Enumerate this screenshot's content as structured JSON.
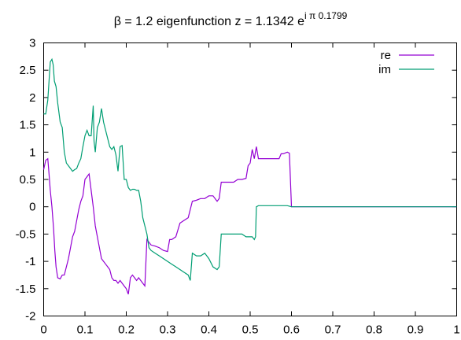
{
  "chart_data": {
    "type": "line",
    "title": {
      "main": "β = 1.2 eigenfunction z = 1.1342 e",
      "superscript": "i π 0.1799"
    },
    "xlabel": "",
    "ylabel": "",
    "xlim": [
      0,
      1
    ],
    "ylim": [
      -2,
      3
    ],
    "x_ticks": [
      "0",
      "0.1",
      "0.2",
      "0.3",
      "0.4",
      "0.5",
      "0.6",
      "0.7",
      "0.8",
      "0.9",
      "1"
    ],
    "y_ticks": [
      "3",
      "2.5",
      "2",
      "1.5",
      "1",
      "0.5",
      "0",
      "-0.5",
      "-1",
      "-1.5",
      "-2"
    ],
    "grid": false,
    "legend_position": "top-right",
    "series": [
      {
        "name": "re",
        "color": "#9400d3",
        "points": [
          [
            0.0,
            0.68
          ],
          [
            0.005,
            0.85
          ],
          [
            0.01,
            0.88
          ],
          [
            0.013,
            0.6
          ],
          [
            0.016,
            0.3
          ],
          [
            0.02,
            0.0
          ],
          [
            0.024,
            -0.4
          ],
          [
            0.027,
            -0.8
          ],
          [
            0.03,
            -1.1
          ],
          [
            0.034,
            -1.3
          ],
          [
            0.04,
            -1.32
          ],
          [
            0.045,
            -1.25
          ],
          [
            0.05,
            -1.25
          ],
          [
            0.055,
            -1.1
          ],
          [
            0.06,
            -0.95
          ],
          [
            0.065,
            -0.75
          ],
          [
            0.07,
            -0.55
          ],
          [
            0.075,
            -0.45
          ],
          [
            0.08,
            -0.25
          ],
          [
            0.085,
            -0.05
          ],
          [
            0.09,
            0.1
          ],
          [
            0.095,
            0.2
          ],
          [
            0.1,
            0.5
          ],
          [
            0.105,
            0.55
          ],
          [
            0.11,
            0.6
          ],
          [
            0.115,
            0.3
          ],
          [
            0.12,
            0.0
          ],
          [
            0.125,
            -0.35
          ],
          [
            0.13,
            -0.55
          ],
          [
            0.135,
            -0.75
          ],
          [
            0.14,
            -0.95
          ],
          [
            0.145,
            -1.0
          ],
          [
            0.15,
            -1.05
          ],
          [
            0.155,
            -1.1
          ],
          [
            0.16,
            -1.15
          ],
          [
            0.165,
            -1.3
          ],
          [
            0.17,
            -1.35
          ],
          [
            0.175,
            -1.35
          ],
          [
            0.18,
            -1.4
          ],
          [
            0.185,
            -1.35
          ],
          [
            0.19,
            -1.4
          ],
          [
            0.195,
            -1.45
          ],
          [
            0.2,
            -1.5
          ],
          [
            0.205,
            -1.6
          ],
          [
            0.21,
            -1.3
          ],
          [
            0.215,
            -1.25
          ],
          [
            0.22,
            -1.3
          ],
          [
            0.225,
            -1.35
          ],
          [
            0.23,
            -1.3
          ],
          [
            0.235,
            -1.35
          ],
          [
            0.24,
            -1.4
          ],
          [
            0.245,
            -1.45
          ],
          [
            0.25,
            -0.6
          ],
          [
            0.255,
            -0.65
          ],
          [
            0.26,
            -0.7
          ],
          [
            0.27,
            -0.72
          ],
          [
            0.28,
            -0.75
          ],
          [
            0.29,
            -0.8
          ],
          [
            0.3,
            -0.82
          ],
          [
            0.305,
            -0.6
          ],
          [
            0.31,
            -0.6
          ],
          [
            0.32,
            -0.55
          ],
          [
            0.33,
            -0.3
          ],
          [
            0.34,
            -0.25
          ],
          [
            0.35,
            -0.2
          ],
          [
            0.36,
            0.1
          ],
          [
            0.37,
            0.12
          ],
          [
            0.38,
            0.15
          ],
          [
            0.39,
            0.15
          ],
          [
            0.4,
            0.2
          ],
          [
            0.41,
            0.2
          ],
          [
            0.42,
            0.1
          ],
          [
            0.425,
            0.15
          ],
          [
            0.43,
            0.45
          ],
          [
            0.44,
            0.45
          ],
          [
            0.45,
            0.45
          ],
          [
            0.46,
            0.45
          ],
          [
            0.47,
            0.5
          ],
          [
            0.48,
            0.5
          ],
          [
            0.49,
            0.52
          ],
          [
            0.495,
            0.75
          ],
          [
            0.5,
            0.8
          ],
          [
            0.505,
            1.05
          ],
          [
            0.51,
            0.88
          ],
          [
            0.515,
            1.1
          ],
          [
            0.52,
            0.88
          ],
          [
            0.53,
            0.88
          ],
          [
            0.55,
            0.88
          ],
          [
            0.57,
            0.88
          ],
          [
            0.575,
            0.97
          ],
          [
            0.58,
            0.97
          ],
          [
            0.59,
            1.0
          ],
          [
            0.595,
            0.98
          ],
          [
            0.6,
            0.0
          ],
          [
            0.7,
            0.0
          ],
          [
            0.8,
            0.0
          ],
          [
            0.9,
            0.0
          ],
          [
            1.0,
            0.0
          ]
        ]
      },
      {
        "name": "im",
        "color": "#009e73",
        "points": [
          [
            0.0,
            1.7
          ],
          [
            0.005,
            1.7
          ],
          [
            0.01,
            1.95
          ],
          [
            0.013,
            2.3
          ],
          [
            0.016,
            2.65
          ],
          [
            0.02,
            2.7
          ],
          [
            0.023,
            2.6
          ],
          [
            0.026,
            2.3
          ],
          [
            0.03,
            2.2
          ],
          [
            0.034,
            1.9
          ],
          [
            0.04,
            1.55
          ],
          [
            0.045,
            1.45
          ],
          [
            0.05,
            1.0
          ],
          [
            0.055,
            0.8
          ],
          [
            0.06,
            0.75
          ],
          [
            0.065,
            0.7
          ],
          [
            0.07,
            0.65
          ],
          [
            0.075,
            0.68
          ],
          [
            0.08,
            0.7
          ],
          [
            0.085,
            0.8
          ],
          [
            0.09,
            0.88
          ],
          [
            0.095,
            1.1
          ],
          [
            0.1,
            1.3
          ],
          [
            0.105,
            1.4
          ],
          [
            0.11,
            1.3
          ],
          [
            0.115,
            1.3
          ],
          [
            0.12,
            1.85
          ],
          [
            0.122,
            1.2
          ],
          [
            0.125,
            1.0
          ],
          [
            0.13,
            1.45
          ],
          [
            0.135,
            1.55
          ],
          [
            0.14,
            1.8
          ],
          [
            0.145,
            1.55
          ],
          [
            0.15,
            1.4
          ],
          [
            0.155,
            1.25
          ],
          [
            0.16,
            1.1
          ],
          [
            0.165,
            1.05
          ],
          [
            0.17,
            1.1
          ],
          [
            0.175,
            0.95
          ],
          [
            0.18,
            0.65
          ],
          [
            0.185,
            1.1
          ],
          [
            0.19,
            1.12
          ],
          [
            0.195,
            0.5
          ],
          [
            0.2,
            0.5
          ],
          [
            0.205,
            0.35
          ],
          [
            0.21,
            0.3
          ],
          [
            0.215,
            0.32
          ],
          [
            0.22,
            0.32
          ],
          [
            0.225,
            0.3
          ],
          [
            0.23,
            0.3
          ],
          [
            0.235,
            0.1
          ],
          [
            0.24,
            -0.2
          ],
          [
            0.245,
            -0.35
          ],
          [
            0.25,
            -0.5
          ],
          [
            0.255,
            -0.75
          ],
          [
            0.26,
            -0.8
          ],
          [
            0.27,
            -0.85
          ],
          [
            0.28,
            -0.9
          ],
          [
            0.29,
            -0.95
          ],
          [
            0.3,
            -1.0
          ],
          [
            0.31,
            -1.05
          ],
          [
            0.32,
            -1.1
          ],
          [
            0.33,
            -1.15
          ],
          [
            0.34,
            -1.2
          ],
          [
            0.35,
            -1.25
          ],
          [
            0.355,
            -1.35
          ],
          [
            0.36,
            -0.85
          ],
          [
            0.37,
            -0.9
          ],
          [
            0.38,
            -0.9
          ],
          [
            0.39,
            -0.85
          ],
          [
            0.4,
            -0.95
          ],
          [
            0.41,
            -1.1
          ],
          [
            0.42,
            -1.15
          ],
          [
            0.425,
            -1.1
          ],
          [
            0.43,
            -0.5
          ],
          [
            0.44,
            -0.5
          ],
          [
            0.45,
            -0.5
          ],
          [
            0.46,
            -0.5
          ],
          [
            0.47,
            -0.5
          ],
          [
            0.48,
            -0.5
          ],
          [
            0.49,
            -0.55
          ],
          [
            0.5,
            -0.55
          ],
          [
            0.505,
            -0.55
          ],
          [
            0.51,
            -0.6
          ],
          [
            0.513,
            -0.55
          ],
          [
            0.515,
            0.0
          ],
          [
            0.52,
            0.02
          ],
          [
            0.53,
            0.02
          ],
          [
            0.55,
            0.02
          ],
          [
            0.57,
            0.02
          ],
          [
            0.59,
            0.02
          ],
          [
            0.6,
            0.0
          ],
          [
            0.7,
            0.0
          ],
          [
            0.8,
            0.0
          ],
          [
            0.9,
            0.0
          ],
          [
            1.0,
            0.0
          ]
        ]
      }
    ]
  }
}
